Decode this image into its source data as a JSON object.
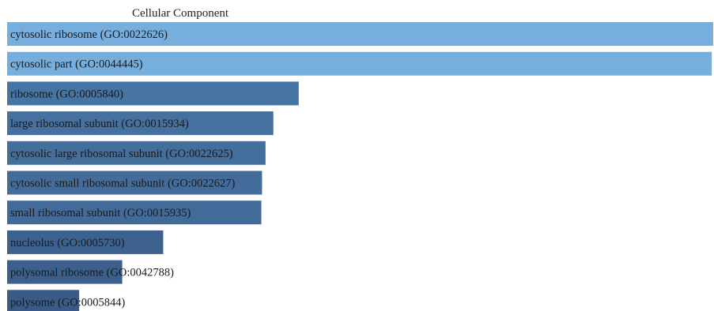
{
  "chart_data": {
    "type": "bar",
    "orientation": "horizontal",
    "title": "Cellular Component",
    "xlabel": "",
    "ylabel": "",
    "grid": false,
    "legend": "none",
    "value_scale": "relative (no axis printed)",
    "xlim": [
      0,
      100
    ],
    "categories": [
      "cytosolic ribosome (GO:0022626)",
      "cytosolic part (GO:0044445)",
      "ribosome (GO:0005840)",
      "large ribosomal subunit (GO:0015934)",
      "cytosolic large ribosomal subunit (GO:0022625)",
      "cytosolic small ribosomal subunit (GO:0022627)",
      "small ribosomal subunit (GO:0015935)",
      "nucleolus (GO:0005730)",
      "polysomal ribosome (GO:0042788)",
      "polysome (GO:0005844)"
    ],
    "values": [
      100,
      99.8,
      41.3,
      37.7,
      36.6,
      36.1,
      36.0,
      22.1,
      16.3,
      10.2
    ],
    "colors": [
      "#76aede",
      "#76aede",
      "#4674a3",
      "#45709f",
      "#446e9c",
      "#436c9a",
      "#426b99",
      "#3e6290",
      "#3c5f8c",
      "#3a5b88"
    ],
    "title_color": "#222222",
    "label_color": "#1a1a1a"
  }
}
